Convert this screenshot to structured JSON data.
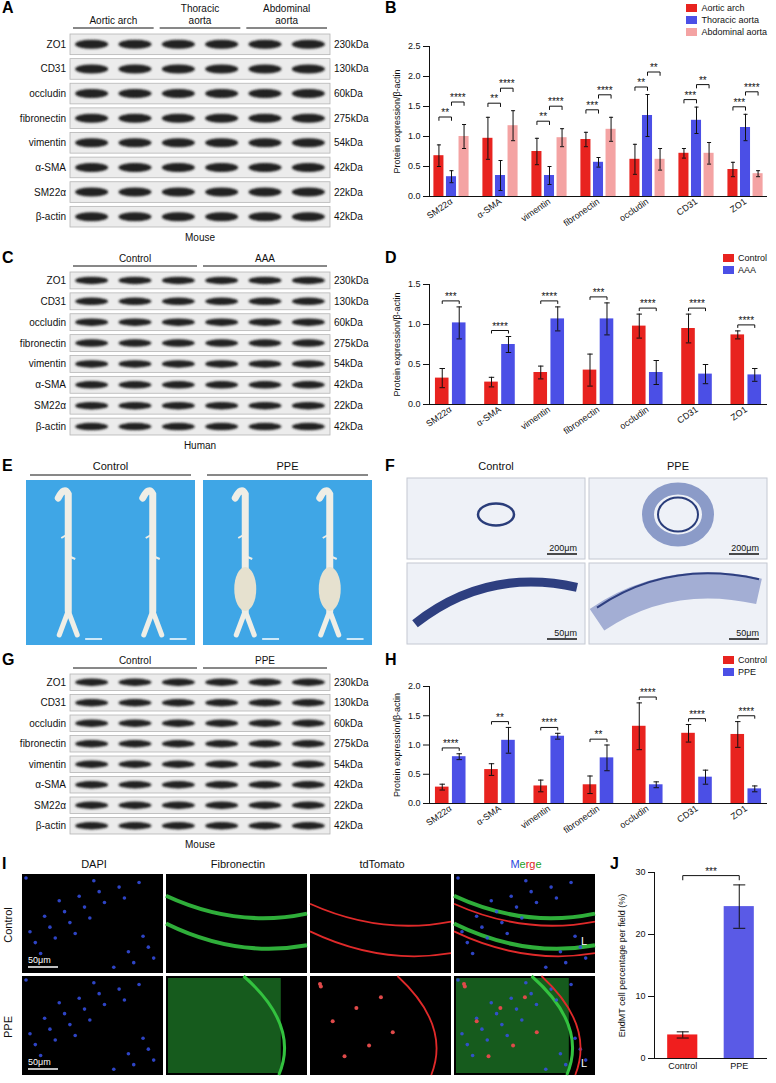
{
  "chart_data": [
    {
      "panel": "B",
      "type": "bar",
      "ylabel": "Protein expression/β-actin",
      "categories": [
        "SM22α",
        "α-SMA",
        "vimentin",
        "fibronectin",
        "occludin",
        "CD31",
        "ZO1"
      ],
      "series": [
        {
          "name": "Aortic arch",
          "color": "#e8231f",
          "values": [
            0.68,
            0.97,
            0.75,
            0.95,
            0.62,
            0.72,
            0.45
          ],
          "errors": [
            0.18,
            0.35,
            0.22,
            0.12,
            0.25,
            0.08,
            0.12
          ]
        },
        {
          "name": "Thoracic aorta",
          "color": "#4b4fe6",
          "values": [
            0.33,
            0.35,
            0.35,
            0.57,
            1.35,
            1.27,
            1.15
          ],
          "errors": [
            0.1,
            0.25,
            0.15,
            0.08,
            0.35,
            0.22,
            0.22
          ]
        },
        {
          "name": "Abdominal aorta",
          "color": "#f4a3a3",
          "values": [
            1.0,
            1.18,
            0.98,
            1.12,
            0.62,
            0.72,
            0.38
          ],
          "errors": [
            0.2,
            0.25,
            0.15,
            0.2,
            0.18,
            0.18,
            0.05
          ]
        }
      ],
      "ylim": [
        0,
        2.5
      ],
      "yticks": [
        {
          "value": 0,
          "label": "0.0"
        },
        {
          "value": 0.5,
          "label": "0.5"
        },
        {
          "value": 1,
          "label": "1.0"
        },
        {
          "value": 1.5,
          "label": "1.5"
        },
        {
          "value": 2,
          "label": "2.0"
        },
        {
          "value": 2.5,
          "label": "2.5"
        }
      ],
      "legend": "top-right",
      "annotations": [
        {
          "category": "SM22α",
          "from": "Aortic arch",
          "to": "Thoracic aorta",
          "label": "**"
        },
        {
          "category": "SM22α",
          "from": "Thoracic aorta",
          "to": "Abdominal aorta",
          "label": "****"
        },
        {
          "category": "α-SMA",
          "from": "Aortic arch",
          "to": "Thoracic aorta",
          "label": "**"
        },
        {
          "category": "α-SMA",
          "from": "Thoracic aorta",
          "to": "Abdominal aorta",
          "label": "****"
        },
        {
          "category": "vimentin",
          "from": "Aortic arch",
          "to": "Thoracic aorta",
          "label": "**"
        },
        {
          "category": "vimentin",
          "from": "Thoracic aorta",
          "to": "Abdominal aorta",
          "label": "****"
        },
        {
          "category": "fibronectin",
          "from": "Aortic arch",
          "to": "Thoracic aorta",
          "label": "***"
        },
        {
          "category": "fibronectin",
          "from": "Thoracic aorta",
          "to": "Abdominal aorta",
          "label": "****"
        },
        {
          "category": "occludin",
          "from": "Aortic arch",
          "to": "Thoracic aorta",
          "label": "**"
        },
        {
          "category": "occludin",
          "from": "Thoracic aorta",
          "to": "Abdominal aorta",
          "label": "**"
        },
        {
          "category": "CD31",
          "from": "Aortic arch",
          "to": "Thoracic aorta",
          "label": "***"
        },
        {
          "category": "CD31",
          "from": "Thoracic aorta",
          "to": "Abdominal aorta",
          "label": "**"
        },
        {
          "category": "ZO1",
          "from": "Aortic arch",
          "to": "Thoracic aorta",
          "label": "***"
        },
        {
          "category": "ZO1",
          "from": "Thoracic aorta",
          "to": "Abdominal aorta",
          "label": "****"
        }
      ]
    },
    {
      "panel": "D",
      "type": "bar",
      "ylabel": "Protein expression/β-actin",
      "categories": [
        "SM22α",
        "α-SMA",
        "vimentin",
        "fibronectin",
        "occludin",
        "CD31",
        "ZO1"
      ],
      "series": [
        {
          "name": "Control",
          "color": "#e8231f",
          "values": [
            0.33,
            0.28,
            0.4,
            0.43,
            0.98,
            0.95,
            0.87
          ],
          "errors": [
            0.12,
            0.06,
            0.08,
            0.2,
            0.15,
            0.18,
            0.05
          ]
        },
        {
          "name": "AAA",
          "color": "#4b4fe6",
          "values": [
            1.02,
            0.75,
            1.07,
            1.07,
            0.4,
            0.38,
            0.37
          ],
          "errors": [
            0.2,
            0.1,
            0.15,
            0.2,
            0.15,
            0.12,
            0.08
          ]
        }
      ],
      "ylim": [
        0,
        1.5
      ],
      "yticks": [
        {
          "value": 0,
          "label": "0.0"
        },
        {
          "value": 0.5,
          "label": "0.5"
        },
        {
          "value": 1,
          "label": "1.0"
        },
        {
          "value": 1.5,
          "label": "1.5"
        }
      ],
      "legend": "top-right",
      "annotations": [
        {
          "category": "SM22α",
          "from": "Control",
          "to": "AAA",
          "label": "***"
        },
        {
          "category": "α-SMA",
          "from": "Control",
          "to": "AAA",
          "label": "****"
        },
        {
          "category": "vimentin",
          "from": "Control",
          "to": "AAA",
          "label": "****"
        },
        {
          "category": "fibronectin",
          "from": "Control",
          "to": "AAA",
          "label": "***"
        },
        {
          "category": "occludin",
          "from": "Control",
          "to": "AAA",
          "label": "****"
        },
        {
          "category": "CD31",
          "from": "Control",
          "to": "AAA",
          "label": "****"
        },
        {
          "category": "ZO1",
          "from": "Control",
          "to": "AAA",
          "label": "****"
        }
      ]
    },
    {
      "panel": "H",
      "type": "bar",
      "ylabel": "Protein expression/β-actin",
      "categories": [
        "SM22α",
        "α-SMA",
        "vimentin",
        "fibronectin",
        "occludin",
        "CD31",
        "ZO1"
      ],
      "series": [
        {
          "name": "Control",
          "color": "#e8231f",
          "values": [
            0.28,
            0.58,
            0.3,
            0.32,
            1.32,
            1.2,
            1.18
          ],
          "errors": [
            0.05,
            0.1,
            0.1,
            0.15,
            0.4,
            0.15,
            0.22
          ]
        },
        {
          "name": "PPE",
          "color": "#4b4fe6",
          "values": [
            0.8,
            1.08,
            1.15,
            0.78,
            0.32,
            0.45,
            0.25
          ],
          "errors": [
            0.05,
            0.22,
            0.05,
            0.22,
            0.05,
            0.12,
            0.05
          ]
        }
      ],
      "ylim": [
        0,
        2
      ],
      "yticks": [
        {
          "value": 0,
          "label": "0.0"
        },
        {
          "value": 0.5,
          "label": "0.5"
        },
        {
          "value": 1,
          "label": "1.0"
        },
        {
          "value": 1.5,
          "label": "1.5"
        },
        {
          "value": 2,
          "label": "2.0"
        }
      ],
      "legend": "top-right",
      "annotations": [
        {
          "category": "SM22α",
          "from": "Control",
          "to": "PPE",
          "label": "****"
        },
        {
          "category": "α-SMA",
          "from": "Control",
          "to": "PPE",
          "label": "**"
        },
        {
          "category": "vimentin",
          "from": "Control",
          "to": "PPE",
          "label": "****"
        },
        {
          "category": "fibronectin",
          "from": "Control",
          "to": "PPE",
          "label": "**"
        },
        {
          "category": "occludin",
          "from": "Control",
          "to": "PPE",
          "label": "****"
        },
        {
          "category": "CD31",
          "from": "Control",
          "to": "PPE",
          "label": "****"
        },
        {
          "category": "ZO1",
          "from": "Control",
          "to": "PPE",
          "label": "****"
        }
      ]
    },
    {
      "panel": "J",
      "type": "bar",
      "ylabel": "EndMT cell percentage per field (%)",
      "categories": [
        "Control",
        "PPE"
      ],
      "values": [
        3.8,
        24.5
      ],
      "errors": [
        0.5,
        3.5
      ],
      "colors": [
        "#f01e1e",
        "#5a5ae6"
      ],
      "ylim": [
        0,
        30
      ],
      "yticks": [
        0,
        10,
        20,
        30
      ],
      "annotations": [
        {
          "from": "Control",
          "to": "PPE",
          "label": "***"
        }
      ]
    }
  ],
  "blots": [
    {
      "panel": "A",
      "species": "Mouse",
      "groups": [
        {
          "name": "Aortic arch",
          "lanes": 2
        },
        {
          "name": "Thoracic aorta",
          "lanes": 2
        },
        {
          "name": "Abdominal aorta",
          "lanes": 2
        }
      ],
      "proteins": [
        {
          "name": "ZO1",
          "size": "230kDa"
        },
        {
          "name": "CD31",
          "size": "130kDa"
        },
        {
          "name": "occludin",
          "size": "60kDa"
        },
        {
          "name": "fibronectin",
          "size": "275kDa"
        },
        {
          "name": "vimentin",
          "size": "54kDa"
        },
        {
          "name": "α-SMA",
          "size": "42kDa"
        },
        {
          "name": "SM22α",
          "size": "22kDa"
        },
        {
          "name": "β-actin",
          "size": "42kDa"
        }
      ]
    },
    {
      "panel": "C",
      "species": "Human",
      "groups": [
        {
          "name": "Control",
          "lanes": 3
        },
        {
          "name": "AAA",
          "lanes": 3
        }
      ],
      "proteins": [
        {
          "name": "ZO1",
          "size": "230kDa"
        },
        {
          "name": "CD31",
          "size": "130kDa"
        },
        {
          "name": "occludin",
          "size": "60kDa"
        },
        {
          "name": "fibronectin",
          "size": "275kDa"
        },
        {
          "name": "vimentin",
          "size": "54kDa"
        },
        {
          "name": "α-SMA",
          "size": "42kDa"
        },
        {
          "name": "SM22α",
          "size": "22kDa"
        },
        {
          "name": "β-actin",
          "size": "42kDa"
        }
      ]
    },
    {
      "panel": "G",
      "species": "Mouse",
      "groups": [
        {
          "name": "Control",
          "lanes": 3
        },
        {
          "name": "PPE",
          "lanes": 3
        }
      ],
      "proteins": [
        {
          "name": "ZO1",
          "size": "230kDa"
        },
        {
          "name": "CD31",
          "size": "130kDa"
        },
        {
          "name": "occludin",
          "size": "60kDa"
        },
        {
          "name": "fibronectin",
          "size": "275kDa"
        },
        {
          "name": "vimentin",
          "size": "54kDa"
        },
        {
          "name": "α-SMA",
          "size": "42kDa"
        },
        {
          "name": "SM22α",
          "size": "22kDa"
        },
        {
          "name": "β-actin",
          "size": "42kDa"
        }
      ]
    }
  ],
  "photos": {
    "panel": "E",
    "groups": [
      {
        "name": "Control",
        "samples": 2
      },
      {
        "name": "PPE",
        "samples": 2
      }
    ]
  },
  "histology": {
    "panel": "F",
    "columns": [
      "Control",
      "PPE"
    ],
    "scale_bars": [
      [
        "200μm",
        "200μm"
      ],
      [
        "50μm",
        "50μm"
      ]
    ]
  },
  "immunofluorescence": {
    "panel": "I",
    "columns": [
      "DAPI",
      "Fibronectin",
      "tdTomato",
      "Merge"
    ],
    "rows": [
      {
        "name": "Control",
        "scale_bar": "50μm",
        "lumen": "L"
      },
      {
        "name": "PPE",
        "scale_bar": "50μm",
        "lumen": "L"
      }
    ]
  }
}
